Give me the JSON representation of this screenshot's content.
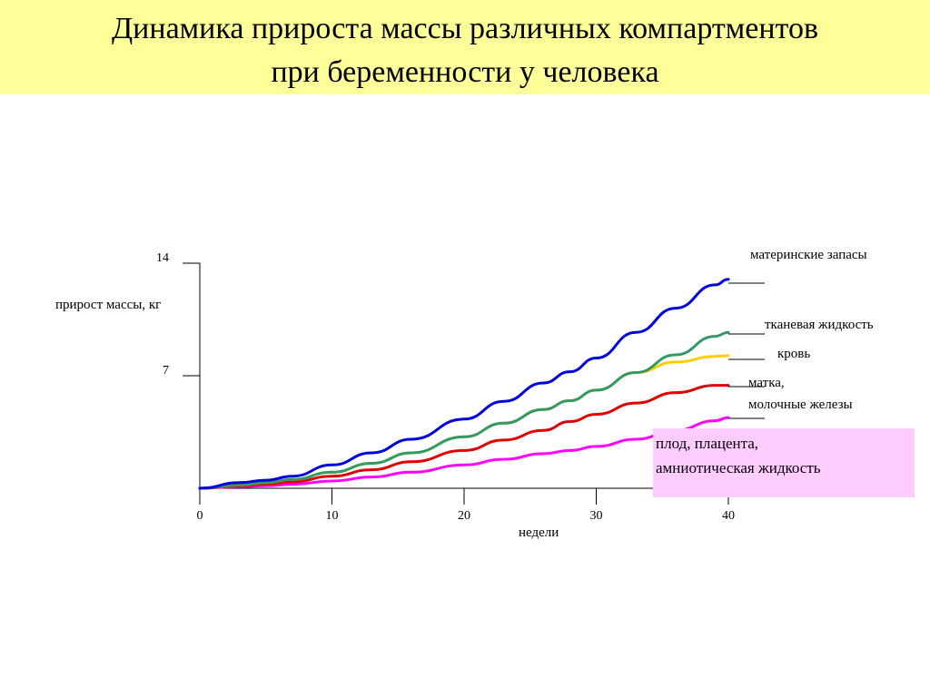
{
  "title": {
    "line1": "Динамика прироста массы различных компартментов",
    "line2": "при беременности у человека"
  },
  "chart_data": {
    "type": "area",
    "xlabel": "недели",
    "ylabel": "прирост массы, кг",
    "x_ticks": [
      "0",
      "10",
      "20",
      "30",
      "40"
    ],
    "y_ticks": [
      "7",
      "14"
    ],
    "xlim": [
      0,
      40
    ],
    "ylim": [
      0,
      14
    ],
    "grid": false,
    "x": [
      0,
      3,
      5,
      7,
      10,
      13,
      16,
      20,
      23,
      26,
      28,
      30,
      33,
      36,
      39,
      40
    ],
    "series": [
      {
        "name": "плод, плацента, амниотическая жидкость",
        "color": "#ff00ff",
        "values": [
          0,
          0.1,
          0.15,
          0.25,
          0.45,
          0.7,
          1.0,
          1.45,
          1.8,
          2.15,
          2.35,
          2.6,
          3.05,
          3.6,
          4.2,
          4.4
        ],
        "label_lines": [
          "плод, плацента,",
          "амниотическая жидкость"
        ]
      },
      {
        "name": "матка, молочные железы",
        "color": "#e00000",
        "values": [
          0,
          0.15,
          0.25,
          0.4,
          0.75,
          1.15,
          1.65,
          2.35,
          3.0,
          3.6,
          4.15,
          4.6,
          5.3,
          5.95,
          6.4,
          6.4
        ],
        "label_lines": [
          "матка,",
          "молочные железы"
        ]
      },
      {
        "name": "кровь",
        "color": "#ffcc00",
        "values": [
          0,
          0.2,
          0.35,
          0.55,
          1.0,
          1.55,
          2.2,
          3.2,
          4.05,
          4.9,
          5.45,
          6.1,
          7.2,
          7.85,
          8.2,
          8.25
        ],
        "label_lines": [
          "кровь"
        ]
      },
      {
        "name": "тканевая жидкость",
        "color": "#339966",
        "values": [
          0,
          0.2,
          0.35,
          0.55,
          1.0,
          1.55,
          2.2,
          3.2,
          4.05,
          4.9,
          5.45,
          6.1,
          7.2,
          8.3,
          9.45,
          9.7
        ],
        "label_lines": [
          "тканевая жидкость"
        ]
      },
      {
        "name": "материнские запасы",
        "color": "#0000dd",
        "values": [
          0,
          0.35,
          0.5,
          0.75,
          1.45,
          2.2,
          3.05,
          4.3,
          5.4,
          6.55,
          7.25,
          8.1,
          9.7,
          11.2,
          12.65,
          13.0
        ],
        "label_lines": [
          "материнские запасы"
        ]
      }
    ]
  }
}
